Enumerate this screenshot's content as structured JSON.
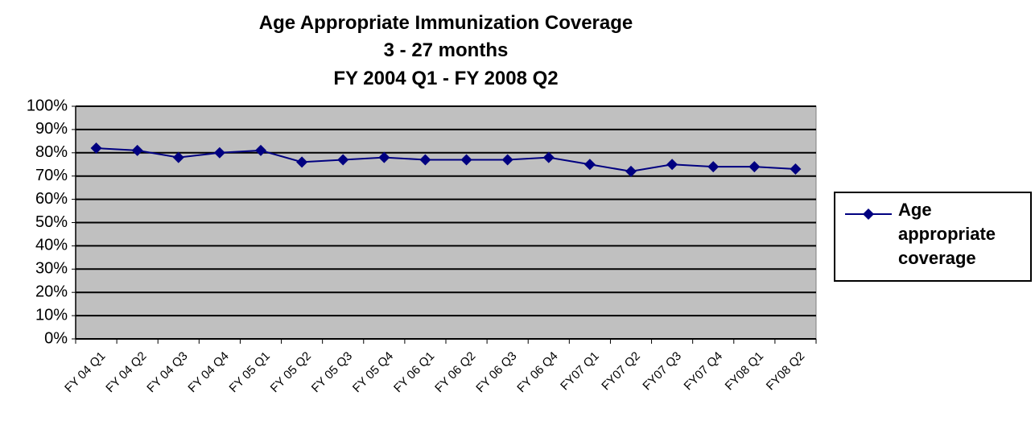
{
  "chart_data": {
    "type": "line",
    "title": [
      "Age Appropriate Immunization Coverage",
      "3 - 27 months",
      "FY 2004 Q1 - FY 2008 Q2"
    ],
    "categories": [
      "FY 04 Q1",
      "FY 04 Q2",
      "FY 04 Q3",
      "FY 04 Q4",
      "FY 05 Q1",
      "FY 05 Q2",
      "FY 05 Q3",
      "FY 05 Q4",
      "FY 06 Q1",
      "FY 06 Q2",
      "FY 06 Q3",
      "FY 06 Q4",
      "FY07 Q1",
      "FY07 Q2",
      "FY07 Q3",
      "FY07 Q4",
      "FY08 Q1",
      "FY08 Q2"
    ],
    "series": [
      {
        "name": "Age appropriate coverage",
        "color": "#000080",
        "values": [
          82,
          81,
          78,
          80,
          81,
          76,
          77,
          78,
          77,
          77,
          77,
          78,
          75,
          72,
          75,
          74,
          74,
          73
        ]
      }
    ],
    "ylim": [
      0,
      100
    ],
    "yticks": [
      {
        "value": 0,
        "label": "0%"
      },
      {
        "value": 10,
        "label": "10%"
      },
      {
        "value": 20,
        "label": "20%"
      },
      {
        "value": 30,
        "label": "30%"
      },
      {
        "value": 40,
        "label": "40%"
      },
      {
        "value": 50,
        "label": "50%"
      },
      {
        "value": 60,
        "label": "60%"
      },
      {
        "value": 70,
        "label": "70%"
      },
      {
        "value": 80,
        "label": "80%"
      },
      {
        "value": 90,
        "label": "90%"
      },
      {
        "value": 100,
        "label": "100%"
      }
    ],
    "grid": true,
    "legend": "right",
    "plot_background": "#c0c0c0"
  }
}
